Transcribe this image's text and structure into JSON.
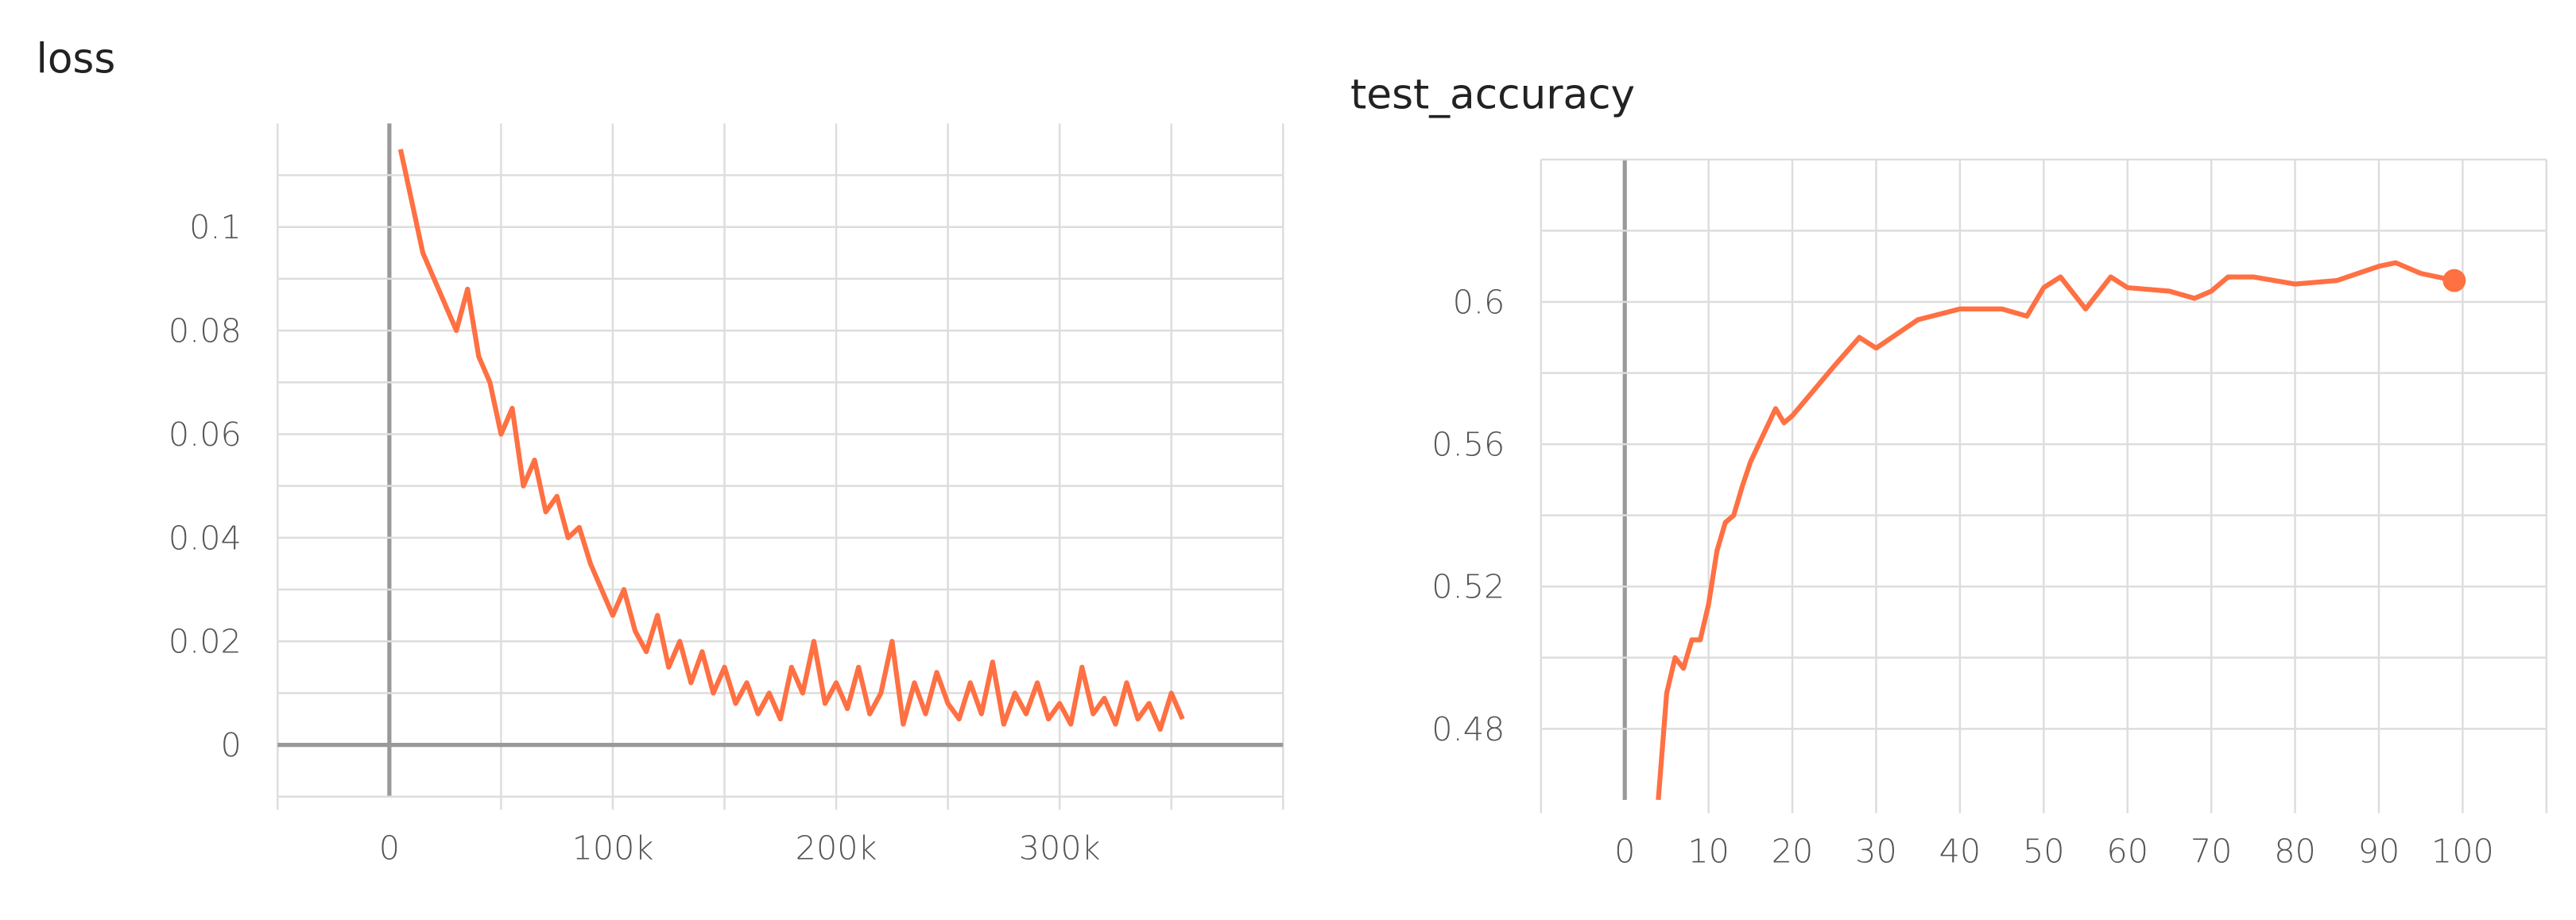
{
  "chart_data": [
    {
      "type": "line",
      "title": "loss",
      "x": [
        5000,
        10000,
        15000,
        20000,
        25000,
        30000,
        35000,
        40000,
        45000,
        50000,
        55000,
        60000,
        65000,
        70000,
        75000,
        80000,
        85000,
        90000,
        95000,
        100000,
        105000,
        110000,
        115000,
        120000,
        125000,
        130000,
        135000,
        140000,
        145000,
        150000,
        155000,
        160000,
        165000,
        170000,
        175000,
        180000,
        185000,
        190000,
        195000,
        200000,
        205000,
        210000,
        215000,
        220000,
        225000,
        230000,
        235000,
        240000,
        245000,
        250000,
        255000,
        260000,
        265000,
        270000,
        275000,
        280000,
        285000,
        290000,
        295000,
        300000,
        305000,
        310000,
        315000,
        320000,
        325000,
        330000,
        335000,
        340000,
        345000,
        350000,
        355000
      ],
      "series": [
        {
          "color": "#ff7043",
          "values": [
            0.115,
            0.105,
            0.095,
            0.09,
            0.085,
            0.08,
            0.088,
            0.075,
            0.07,
            0.06,
            0.065,
            0.05,
            0.055,
            0.045,
            0.048,
            0.04,
            0.042,
            0.035,
            0.03,
            0.025,
            0.03,
            0.022,
            0.018,
            0.025,
            0.015,
            0.02,
            0.012,
            0.018,
            0.01,
            0.015,
            0.008,
            0.012,
            0.006,
            0.01,
            0.005,
            0.015,
            0.01,
            0.02,
            0.008,
            0.012,
            0.007,
            0.015,
            0.006,
            0.01,
            0.02,
            0.004,
            0.012,
            0.006,
            0.014,
            0.008,
            0.005,
            0.012,
            0.006,
            0.016,
            0.004,
            0.01,
            0.006,
            0.012,
            0.005,
            0.008,
            0.004,
            0.015,
            0.006,
            0.009,
            0.004,
            0.012,
            0.005,
            0.008,
            0.003,
            0.01,
            0.005
          ]
        }
      ],
      "xlim": [
        -50000,
        400000
      ],
      "xticks": [
        0,
        {
          "value": 100000,
          "label": "100k"
        },
        {
          "value": 200000,
          "label": "200k"
        },
        {
          "value": 300000,
          "label": "300k"
        }
      ],
      "xgrid": [
        -50000,
        0,
        50000,
        100000,
        150000,
        200000,
        250000,
        300000,
        350000,
        400000
      ],
      "ylim": [
        -0.01,
        0.12
      ],
      "yticks": [
        0,
        0.02,
        0.04,
        0.06,
        0.08,
        0.1
      ],
      "ygrid": [
        -0.01,
        0,
        0.01,
        0.02,
        0.03,
        0.04,
        0.05,
        0.06,
        0.07,
        0.08,
        0.09,
        0.1,
        0.11
      ],
      "grid": true
    },
    {
      "type": "line",
      "title": "test_accuracy",
      "x": [
        4,
        5,
        6,
        7,
        8,
        9,
        10,
        11,
        12,
        13,
        14,
        15,
        16,
        17,
        18,
        19,
        20,
        25,
        28,
        30,
        35,
        40,
        45,
        48,
        50,
        52,
        55,
        58,
        60,
        65,
        68,
        70,
        72,
        75,
        80,
        85,
        90,
        92,
        95,
        99
      ],
      "series": [
        {
          "color": "#ff7043",
          "values": [
            0.46,
            0.49,
            0.5,
            0.497,
            0.505,
            0.505,
            0.515,
            0.53,
            0.538,
            0.54,
            0.548,
            0.555,
            0.56,
            0.565,
            0.57,
            0.566,
            0.568,
            0.582,
            0.59,
            0.587,
            0.595,
            0.598,
            0.598,
            0.596,
            0.604,
            0.607,
            0.598,
            0.607,
            0.604,
            0.603,
            0.601,
            0.603,
            0.607,
            0.607,
            0.605,
            0.606,
            0.61,
            0.611,
            0.608,
            0.606
          ]
        }
      ],
      "xlim": [
        -10,
        110
      ],
      "xticks": [
        0,
        10,
        20,
        30,
        40,
        50,
        60,
        70,
        80,
        90,
        100
      ],
      "xgrid": [
        -10,
        0,
        10,
        20,
        30,
        40,
        50,
        60,
        70,
        80,
        90,
        100,
        110
      ],
      "ylim": [
        0.46,
        0.64
      ],
      "yticks": [
        0.48,
        0.52,
        0.56,
        0.6
      ],
      "ygrid": [
        0.48,
        0.5,
        0.52,
        0.54,
        0.56,
        0.58,
        0.6,
        0.62,
        0.64
      ],
      "grid": true
    }
  ]
}
